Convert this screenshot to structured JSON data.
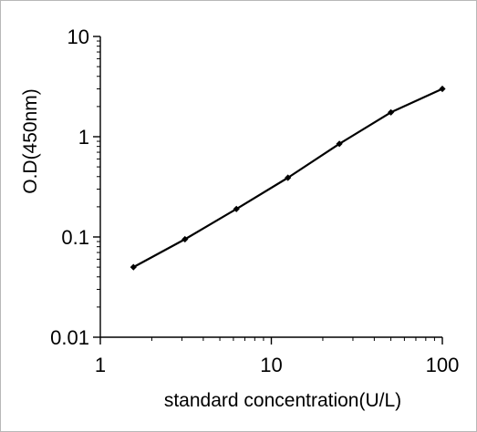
{
  "chart_data": {
    "type": "line",
    "title": "",
    "xlabel": "standard concentration(U/L)",
    "ylabel": "O.D(450nm)",
    "x_scale": "log",
    "y_scale": "log",
    "xlim": [
      1,
      100
    ],
    "ylim": [
      0.01,
      10
    ],
    "x_ticks": [
      1,
      10,
      100
    ],
    "x_tick_labels": [
      "1",
      "10",
      "100"
    ],
    "y_ticks": [
      0.01,
      0.1,
      1,
      10
    ],
    "y_tick_labels": [
      "0.01",
      "0.1",
      "1",
      "10"
    ],
    "grid": false,
    "legend": "none",
    "marker": "diamond",
    "line_color": "#000000",
    "series": [
      {
        "x": [
          1.5625,
          3.125,
          6.25,
          12.5,
          25,
          50,
          100
        ],
        "y": [
          0.05,
          0.095,
          0.19,
          0.39,
          0.85,
          1.75,
          3.0
        ]
      }
    ]
  }
}
